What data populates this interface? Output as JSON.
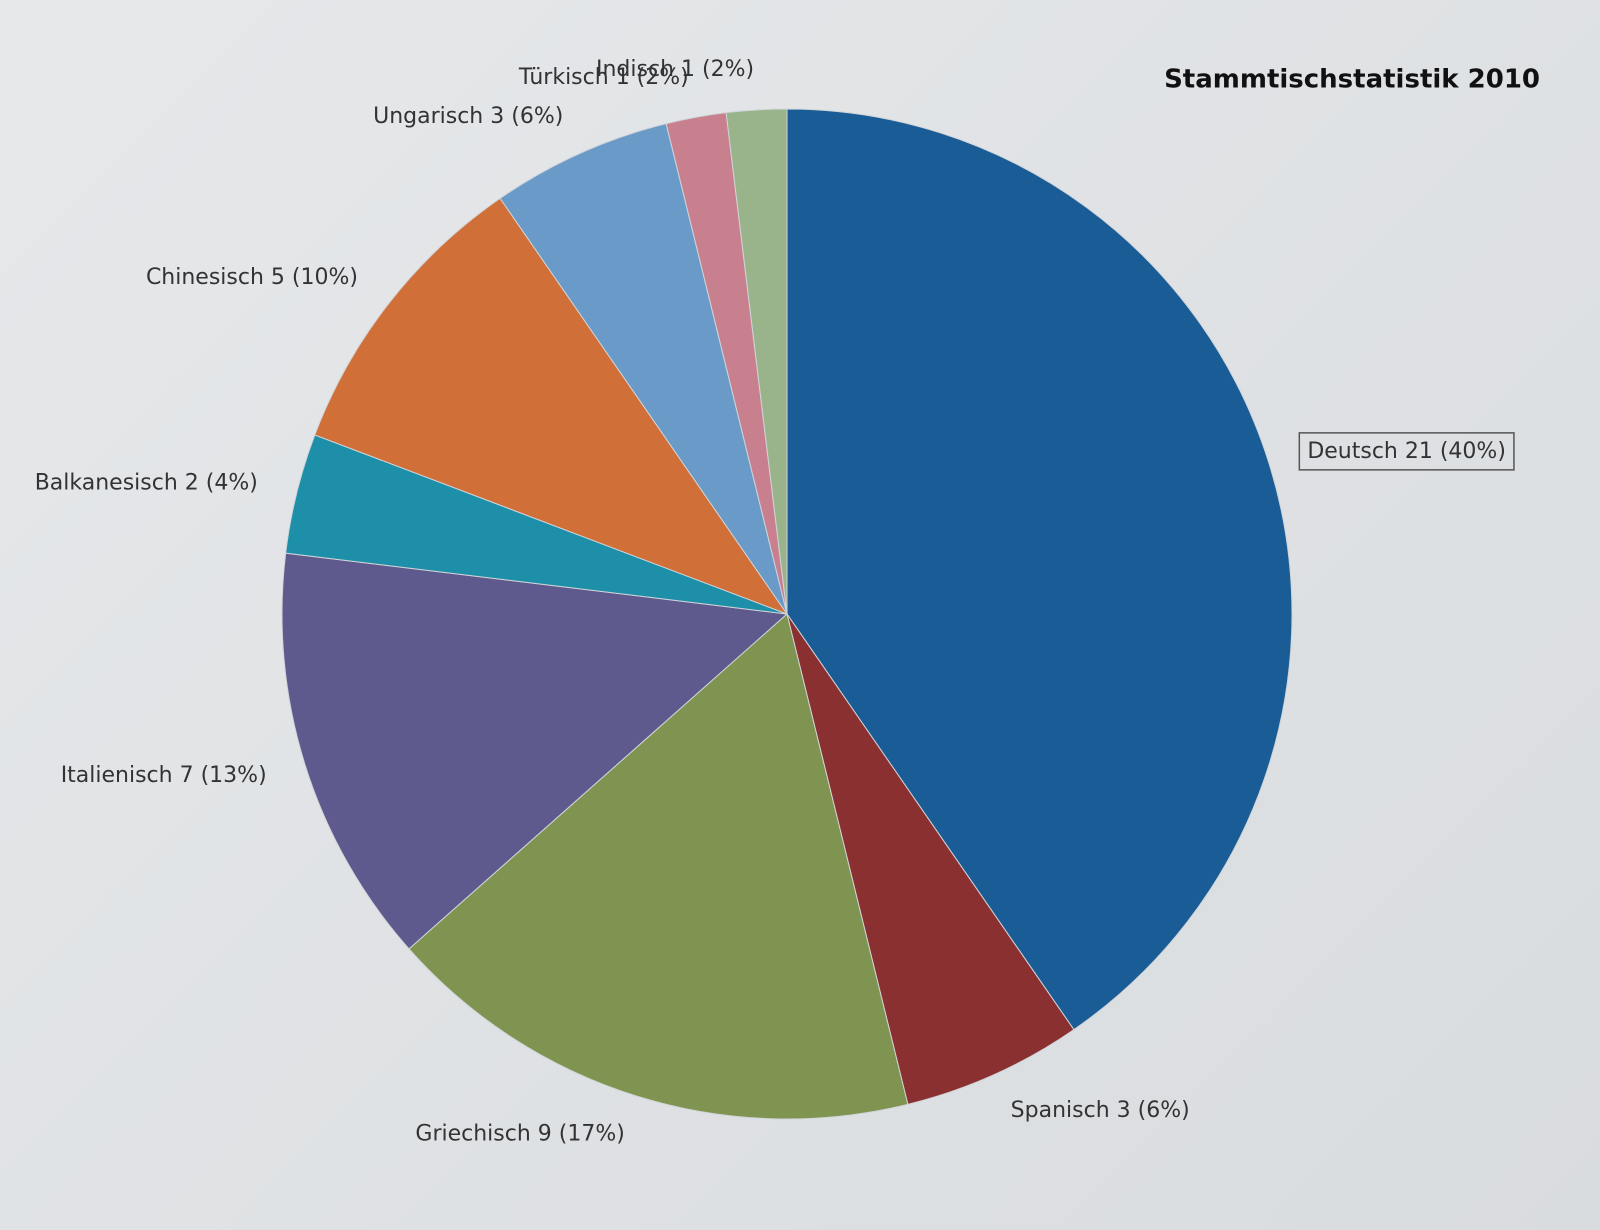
{
  "chart_data": {
    "type": "pie",
    "title": "Stammtischstatistik 2010",
    "categories": [
      "Deutsch",
      "Spanisch",
      "Griechisch",
      "Italienisch",
      "Balkanesisch",
      "Chinesisch",
      "Ungarisch",
      "Türkisch",
      "Indisch"
    ],
    "values": [
      21,
      3,
      9,
      7,
      2,
      5,
      3,
      1,
      1
    ],
    "value_labels": [
      "21 (40%)",
      "3 (6%)",
      "9 (17%)",
      "7 (13%)",
      "2 (4%)",
      "5 (10%)",
      "3 (6%)",
      "1 (2%)",
      "1 (2%)"
    ],
    "colors": [
      "#1a5d96",
      "#8b3030",
      "#7f9450",
      "#5f5a8e",
      "#1e8fa8",
      "#d06f38",
      "#6a9bc8",
      "#c8808f",
      "#99b38b"
    ]
  }
}
